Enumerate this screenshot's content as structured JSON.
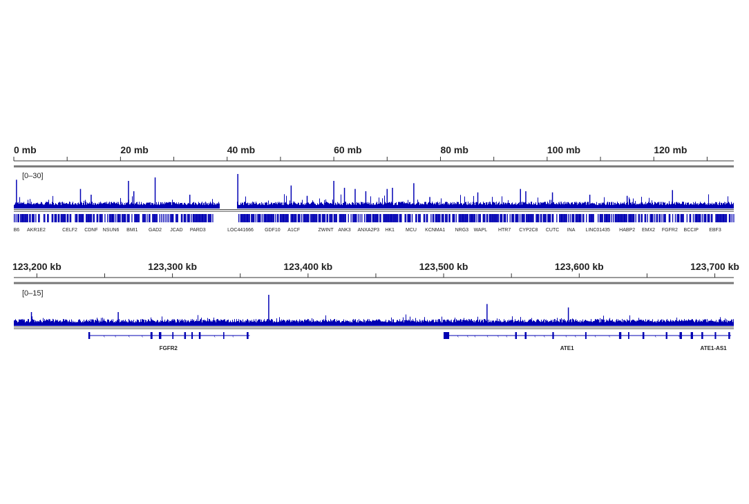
{
  "chart_data": [
    {
      "type": "bar",
      "panel": "genome-wide",
      "ruler_unit": "mb",
      "xlim": [
        0,
        135
      ],
      "ticks": [
        {
          "value": 0,
          "label": "0 mb"
        },
        {
          "value": 20,
          "label": "20 mb"
        },
        {
          "value": 40,
          "label": "40 mb"
        },
        {
          "value": 60,
          "label": "60 mb"
        },
        {
          "value": 80,
          "label": "80 mb"
        },
        {
          "value": 100,
          "label": "100 mb"
        },
        {
          "value": 120,
          "label": "120 mb"
        }
      ],
      "range_label": "[0–30]",
      "ylim": [
        0,
        30
      ],
      "color": "#0000b3",
      "gap": [
        38.5,
        41.8
      ],
      "peaks": [
        [
          0.5,
          25
        ],
        [
          12.5,
          17
        ],
        [
          14.5,
          12
        ],
        [
          21.5,
          24
        ],
        [
          22.5,
          15
        ],
        [
          26.5,
          27
        ],
        [
          33,
          12
        ],
        [
          42,
          30
        ],
        [
          52,
          20
        ],
        [
          55,
          11
        ],
        [
          60,
          24
        ],
        [
          62,
          18
        ],
        [
          64,
          17
        ],
        [
          66,
          15
        ],
        [
          70,
          17
        ],
        [
          71,
          18
        ],
        [
          75,
          22
        ],
        [
          78,
          10
        ],
        [
          87,
          14
        ],
        [
          95,
          17
        ],
        [
          96,
          15
        ],
        [
          101,
          14
        ],
        [
          108,
          12
        ],
        [
          115,
          11
        ],
        [
          123.5,
          16
        ]
      ],
      "genes": [
        {
          "label": "B6",
          "pos": 0.5
        },
        {
          "label": "AKR1E2",
          "pos": 4.2
        },
        {
          "label": "CELF2",
          "pos": 10.5
        },
        {
          "label": "CDNF",
          "pos": 14.5
        },
        {
          "label": "NSUN6",
          "pos": 18.2
        },
        {
          "label": "BMI1",
          "pos": 22.2
        },
        {
          "label": "GAD2",
          "pos": 26.5
        },
        {
          "label": "JCAD",
          "pos": 30.5
        },
        {
          "label": "PARD3",
          "pos": 34.5
        },
        {
          "label": "LOC441666",
          "pos": 42.5
        },
        {
          "label": "GDF10",
          "pos": 48.5
        },
        {
          "label": "A1CF",
          "pos": 52.5
        },
        {
          "label": "ZWINT",
          "pos": 58.5
        },
        {
          "label": "ANK3",
          "pos": 62
        },
        {
          "label": "ANXA2P3",
          "pos": 66.5
        },
        {
          "label": "HK1",
          "pos": 70.5
        },
        {
          "label": "MCU",
          "pos": 74.5
        },
        {
          "label": "KCNMA1",
          "pos": 79
        },
        {
          "label": "NRG3",
          "pos": 84
        },
        {
          "label": "WAPL",
          "pos": 87.5
        },
        {
          "label": "HTR7",
          "pos": 92
        },
        {
          "label": "CYP2C8",
          "pos": 96.5
        },
        {
          "label": "CUTC",
          "pos": 101
        },
        {
          "label": "INA",
          "pos": 104.5
        },
        {
          "label": "LINC01435",
          "pos": 109.5
        },
        {
          "label": "HABP2",
          "pos": 115
        },
        {
          "label": "EMX2",
          "pos": 119
        },
        {
          "label": "FGFR2",
          "pos": 123
        },
        {
          "label": "BCCIP",
          "pos": 127
        },
        {
          "label": "EBF3",
          "pos": 131.5
        }
      ]
    },
    {
      "type": "bar",
      "panel": "FGFR2 region",
      "ruler_unit": "kb",
      "xlim": [
        123183,
        123714
      ],
      "ticks": [
        {
          "value": 123200,
          "label": "123,200 kb"
        },
        {
          "value": 123300,
          "label": "123,300 kb"
        },
        {
          "value": 123400,
          "label": "123,400 kb"
        },
        {
          "value": 123500,
          "label": "123,500 kb"
        },
        {
          "value": 123600,
          "label": "123,600 kb"
        },
        {
          "value": 123700,
          "label": "123,700 kb"
        }
      ],
      "range_label": "[0–15]",
      "ylim": [
        0,
        15
      ],
      "color": "#0000b3",
      "peaks": [
        [
          123196,
          6
        ],
        [
          123209,
          3
        ],
        [
          123260,
          6
        ],
        [
          123330,
          2.5
        ],
        [
          123371,
          13.5
        ],
        [
          123490,
          2
        ],
        [
          123532,
          9.5
        ],
        [
          123592,
          8
        ],
        [
          123646,
          2.5
        ],
        [
          123700,
          2
        ]
      ],
      "genes": [
        {
          "label": "FGFR2",
          "start": 123238,
          "end": 123357,
          "strand": "-",
          "label_pos": 123297
        },
        {
          "label": "ATE1",
          "start": 123500,
          "end": 123674,
          "strand": "-",
          "label_pos": 123591
        },
        {
          "label": "ATE1-AS1",
          "start": 123674,
          "end": 123712,
          "strand": "+",
          "label_pos": 123699
        }
      ]
    }
  ]
}
